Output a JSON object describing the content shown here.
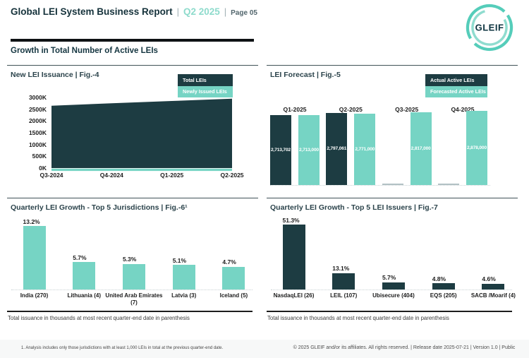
{
  "page": {
    "header": {
      "title": "Global LEI System Business Report",
      "separator": "|",
      "quarter": "Q2 2025",
      "page_label": "Page 05"
    },
    "logo_text": "GLEIF",
    "section_title": "Growth in Total Number of Active LEIs",
    "footnote": "1. Analysis includes only those jurisdictions with at least 1,000 LEIs in total at the previous quarter-end date.",
    "copyright": "© 2025 GLEIF and/or its affiliates. All rights reserved. | Release date 2025-07-21 | Version 1.0 | Public"
  },
  "notes": {
    "issuance_note": "Total issuance in thousands at most recent quarter-end date in parenthesis"
  },
  "colors": {
    "dark_navy": "#1d3c42",
    "teal": "#76d4c4",
    "header_teal": "#8edbcc",
    "logo_outer_ring": "#55cdba",
    "logo_inner_ring": "#8fdccf",
    "logo_text_color": "#0d3440"
  },
  "chart_data": [
    {
      "id": "fig4",
      "type": "area",
      "title": "New LEI Issuance | Fig.-4",
      "x": [
        "Q3-2024",
        "Q4-2024",
        "Q1-2025",
        "Q2-2025"
      ],
      "series": [
        {
          "name": "Total LEIs",
          "values_thousands": [
            2650,
            2750,
            2850,
            2950
          ],
          "color": "dark_navy"
        },
        {
          "name": "Newly Issued LEIs",
          "values_thousands": [
            100,
            100,
            100,
            100
          ],
          "color": "teal"
        }
      ],
      "ylim_thousands": [
        0,
        3000
      ],
      "y_ticks": [
        "3000K",
        "2500K",
        "2000K",
        "1500K",
        "1000K",
        "500K",
        "0K"
      ],
      "legend_position": "top-right",
      "grid": false
    },
    {
      "id": "fig5",
      "type": "bar",
      "title": "LEI Forecast | Fig.-5",
      "categories": [
        "Q1-2025",
        "Q2-2025",
        "Q3-2025",
        "Q4-2025"
      ],
      "series": [
        {
          "name": "Actual Active LEIs",
          "color": "dark_navy",
          "values": [
            2713702,
            2797061,
            null,
            null
          ]
        },
        {
          "name": "Forecasted Active LEIs",
          "color": "teal",
          "values": [
            2713000,
            2771000,
            2817000,
            2878000
          ]
        }
      ],
      "value_labels_inside_bars": true,
      "legend_position": "top-right",
      "grid": false
    },
    {
      "id": "fig6",
      "type": "bar",
      "title": "Quarterly LEI Growth - Top 5 Jurisdictions | Fig.-6¹",
      "categories": [
        "India (270)",
        "Lithuania (4)",
        "United Arab Emirates\n(7)",
        "Latvia (3)",
        "Iceland (5)"
      ],
      "values": [
        13.2,
        5.7,
        5.3,
        5.1,
        4.7
      ],
      "unit": "%",
      "bar_color": "teal",
      "grid": false
    },
    {
      "id": "fig7",
      "type": "bar",
      "title": "Quarterly LEI Growth - Top 5 LEI Issuers | Fig.-7",
      "categories": [
        "NasdaqLEI (26)",
        "LEIL (107)",
        "Ubisecure (404)",
        "EQS (205)",
        "SACB /Moarif (4)"
      ],
      "values": [
        51.3,
        13.1,
        5.7,
        4.8,
        4.6
      ],
      "unit": "%",
      "bar_color": "dark_navy",
      "grid": false
    }
  ]
}
